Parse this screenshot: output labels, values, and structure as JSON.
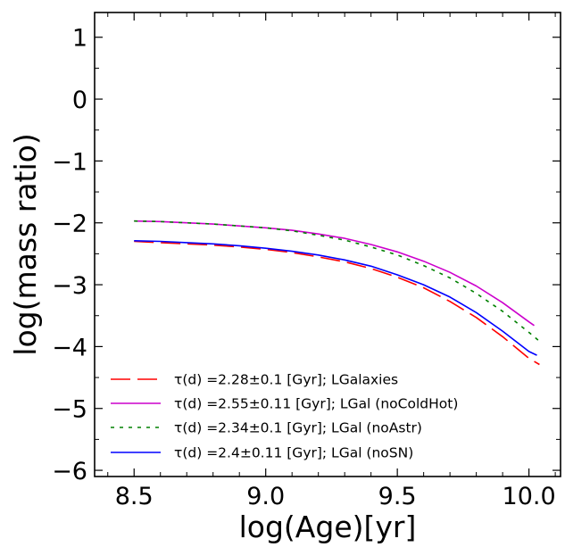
{
  "chart_data": {
    "type": "line",
    "title": "",
    "xlabel": "log(Age)[yr]",
    "ylabel": "log(mass ratio)",
    "xlim": [
      8.35,
      10.12
    ],
    "ylim": [
      -6.1,
      1.4
    ],
    "xticks": [
      8.5,
      9.0,
      9.5,
      10.0
    ],
    "xtick_labels": [
      "8.5",
      "9.0",
      "9.5",
      "10.0"
    ],
    "yticks": [
      1,
      0,
      -1,
      -2,
      -3,
      -4,
      -5,
      -6
    ],
    "ytick_labels": [
      "1",
      "0",
      "−1",
      "−2",
      "−3",
      "−4",
      "−5",
      "−6"
    ],
    "grid": false,
    "legend_position": "lower-left",
    "series": [
      {
        "name": "τ(d) =2.28±0.1 [Gyr]; LGalaxies",
        "color": "#ff0000",
        "style": "dashed",
        "x": [
          8.5,
          8.6,
          8.7,
          8.8,
          8.9,
          9.0,
          9.1,
          9.2,
          9.3,
          9.4,
          9.5,
          9.6,
          9.7,
          9.8,
          9.9,
          10.0,
          10.04
        ],
        "y": [
          -2.3,
          -2.32,
          -2.34,
          -2.36,
          -2.39,
          -2.43,
          -2.48,
          -2.55,
          -2.63,
          -2.74,
          -2.88,
          -3.05,
          -3.27,
          -3.53,
          -3.84,
          -4.19,
          -4.29
        ]
      },
      {
        "name": "τ(d) =2.55±0.11 [Gyr]; LGal (noColdHot)",
        "color": "#cc00cc",
        "style": "solid",
        "x": [
          8.5,
          8.6,
          8.7,
          8.8,
          8.9,
          9.0,
          9.1,
          9.2,
          9.3,
          9.4,
          9.5,
          9.6,
          9.7,
          9.8,
          9.9,
          10.0,
          10.02
        ],
        "y": [
          -1.97,
          -1.98,
          -2.0,
          -2.02,
          -2.05,
          -2.08,
          -2.12,
          -2.18,
          -2.25,
          -2.35,
          -2.47,
          -2.62,
          -2.8,
          -3.02,
          -3.29,
          -3.6,
          -3.66
        ]
      },
      {
        "name": "τ(d) =2.34±0.1 [Gyr]; LGal (noAstr)",
        "color": "#008000",
        "style": "dotted",
        "x": [
          8.5,
          8.6,
          8.7,
          8.8,
          8.9,
          9.0,
          9.1,
          9.2,
          9.3,
          9.4,
          9.5,
          9.6,
          9.7,
          9.8,
          9.9,
          10.0,
          10.05
        ],
        "y": [
          -1.97,
          -1.98,
          -2.0,
          -2.02,
          -2.05,
          -2.08,
          -2.13,
          -2.2,
          -2.28,
          -2.39,
          -2.52,
          -2.69,
          -2.89,
          -3.14,
          -3.43,
          -3.77,
          -3.95
        ]
      },
      {
        "name": "τ(d) =2.4±0.11 [Gyr]; LGal (noSN)",
        "color": "#0000ff",
        "style": "solid",
        "x": [
          8.5,
          8.6,
          8.7,
          8.8,
          8.9,
          9.0,
          9.1,
          9.2,
          9.3,
          9.4,
          9.5,
          9.6,
          9.7,
          9.8,
          9.9,
          10.0,
          10.03
        ],
        "y": [
          -2.29,
          -2.3,
          -2.32,
          -2.34,
          -2.37,
          -2.41,
          -2.46,
          -2.52,
          -2.6,
          -2.7,
          -2.84,
          -3.0,
          -3.2,
          -3.45,
          -3.75,
          -4.08,
          -4.14
        ]
      }
    ]
  }
}
